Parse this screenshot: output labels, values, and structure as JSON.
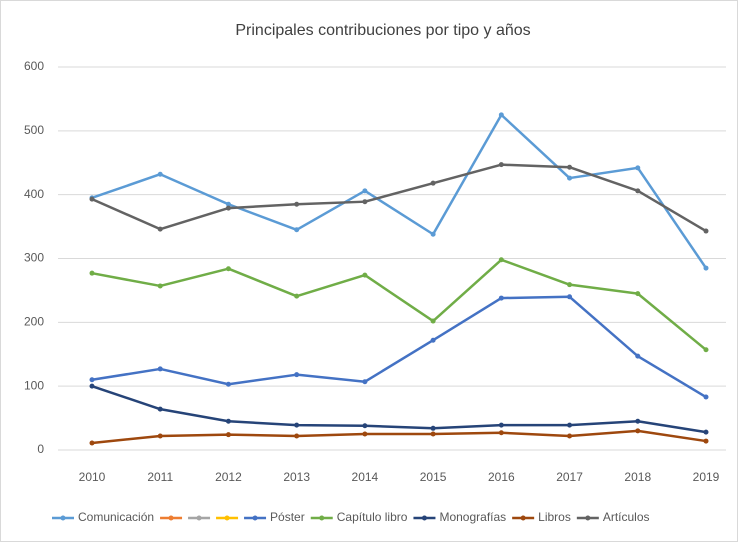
{
  "chart_data": {
    "type": "line",
    "title": "Principales contribuciones por tipo y años",
    "categories": [
      "2010",
      "2011",
      "2012",
      "2013",
      "2014",
      "2015",
      "2016",
      "2017",
      "2018",
      "2019"
    ],
    "ylim": [
      0,
      600
    ],
    "yticks": [
      0,
      100,
      200,
      300,
      400,
      500,
      600
    ],
    "grid": true,
    "legend": "bottom",
    "series": [
      {
        "name": "Comunicación",
        "color": "#5b9bd5",
        "values": [
          395,
          432,
          385,
          345,
          406,
          338,
          525,
          426,
          442,
          285
        ]
      },
      {
        "name": "Póster",
        "color": "#4472c4",
        "values": [
          110,
          127,
          103,
          118,
          107,
          172,
          238,
          240,
          147,
          83
        ]
      },
      {
        "name": "Capítulo libro",
        "color": "#70ad47",
        "values": [
          277,
          257,
          284,
          241,
          274,
          202,
          298,
          259,
          245,
          157
        ]
      },
      {
        "name": "Monografías",
        "color": "#264478",
        "values": [
          100,
          64,
          45,
          39,
          38,
          34,
          39,
          39,
          45,
          28
        ]
      },
      {
        "name": "Libros",
        "color": "#9e480e",
        "values": [
          11,
          22,
          24,
          22,
          25,
          25,
          27,
          22,
          30,
          14
        ]
      },
      {
        "name": "Artículos",
        "color": "#636363",
        "values": [
          393,
          346,
          379,
          385,
          389,
          418,
          447,
          443,
          406,
          343
        ]
      }
    ]
  }
}
